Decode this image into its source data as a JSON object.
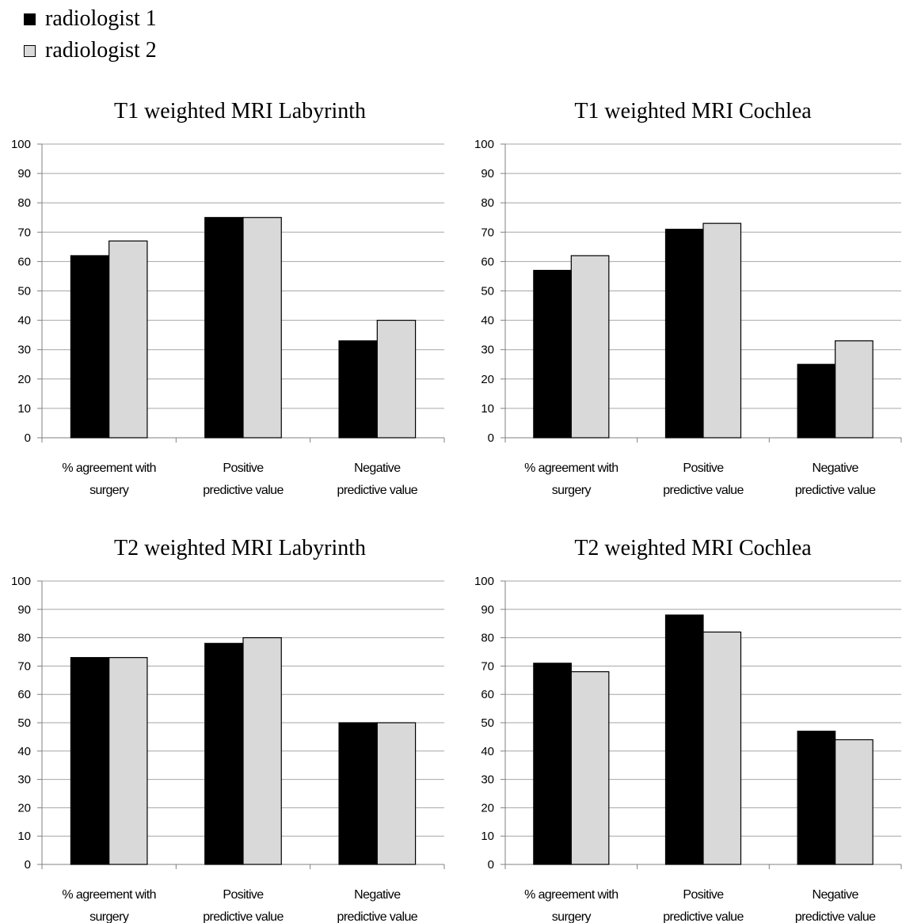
{
  "legend": [
    {
      "name": "radiologist 1",
      "color": "#000000"
    },
    {
      "name": "radiologist 2",
      "color": "#d9d9d9"
    }
  ],
  "chart_data": [
    {
      "type": "bar",
      "title": "T1 weighted MRI Labyrinth",
      "categories": [
        [
          "% agreement with",
          "surgery"
        ],
        [
          "Positive",
          "predictive value"
        ],
        [
          "Negative",
          "predictive value"
        ]
      ],
      "series": [
        {
          "name": "radiologist 1",
          "values": [
            62,
            75,
            33
          ]
        },
        {
          "name": "radiologist 2",
          "values": [
            67,
            75,
            40
          ]
        }
      ],
      "ylim": [
        0,
        100
      ],
      "yticks": [
        0,
        10,
        20,
        30,
        40,
        50,
        60,
        70,
        80,
        90,
        100
      ],
      "grid": true,
      "legend_position": "top-left"
    },
    {
      "type": "bar",
      "title": "T1 weighted MRI Cochlea",
      "categories": [
        [
          "% agreement with",
          "surgery"
        ],
        [
          "Positive",
          "predictive value"
        ],
        [
          "Negative",
          "predictive value"
        ]
      ],
      "series": [
        {
          "name": "radiologist 1",
          "values": [
            57,
            71,
            25
          ]
        },
        {
          "name": "radiologist 2",
          "values": [
            62,
            73,
            33
          ]
        }
      ],
      "ylim": [
        0,
        100
      ],
      "yticks": [
        0,
        10,
        20,
        30,
        40,
        50,
        60,
        70,
        80,
        90,
        100
      ],
      "grid": true,
      "legend_position": "top-left"
    },
    {
      "type": "bar",
      "title": "T2 weighted MRI Labyrinth",
      "categories": [
        [
          "% agreement with",
          "surgery"
        ],
        [
          "Positive",
          "predictive value"
        ],
        [
          "Negative",
          "predictive value"
        ]
      ],
      "series": [
        {
          "name": "radiologist 1",
          "values": [
            73,
            78,
            50
          ]
        },
        {
          "name": "radiologist 2",
          "values": [
            73,
            80,
            50
          ]
        }
      ],
      "ylim": [
        0,
        100
      ],
      "yticks": [
        0,
        10,
        20,
        30,
        40,
        50,
        60,
        70,
        80,
        90,
        100
      ],
      "grid": true,
      "legend_position": "top-left"
    },
    {
      "type": "bar",
      "title": "T2 weighted MRI Cochlea",
      "categories": [
        [
          "% agreement with",
          "surgery"
        ],
        [
          "Positive",
          "predictive value"
        ],
        [
          "Negative",
          "predictive value"
        ]
      ],
      "series": [
        {
          "name": "radiologist 1",
          "values": [
            71,
            88,
            47
          ]
        },
        {
          "name": "radiologist 2",
          "values": [
            68,
            82,
            44
          ]
        }
      ],
      "ylim": [
        0,
        100
      ],
      "yticks": [
        0,
        10,
        20,
        30,
        40,
        50,
        60,
        70,
        80,
        90,
        100
      ],
      "grid": true,
      "legend_position": "top-left"
    }
  ]
}
